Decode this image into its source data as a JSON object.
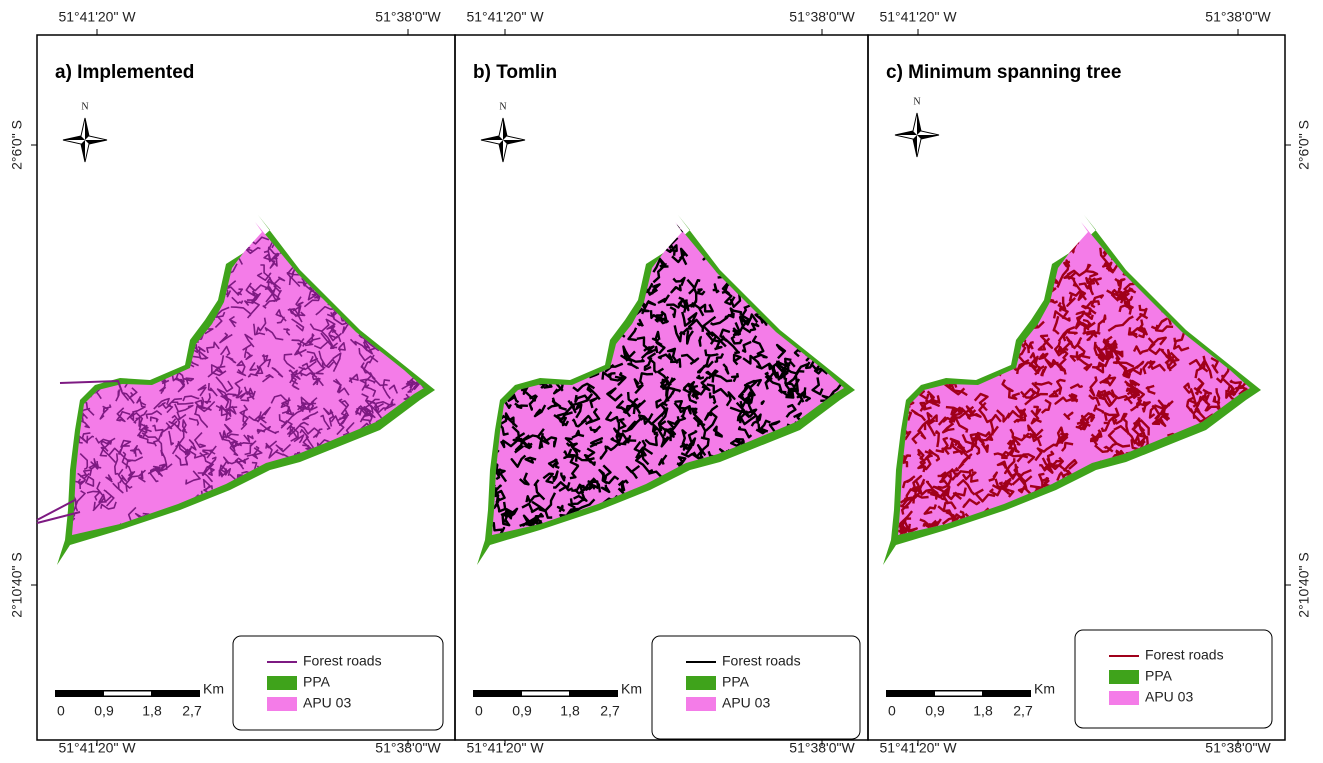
{
  "panels": [
    {
      "title": "a) Implemented",
      "north": "N",
      "legend": [
        {
          "label": "Forest roads",
          "color": "#7d1a82"
        },
        {
          "label": "PPA",
          "color": "#3fa31b"
        },
        {
          "label": "APU 03",
          "color": "#f47ce8"
        }
      ],
      "scale": {
        "labels": [
          "0",
          "0,9",
          "1,8",
          "2,7"
        ],
        "unit": "Km"
      },
      "top_coords": [
        "51°41'20\" W",
        "51°38'0\"W"
      ],
      "bottom_coords": [
        "51°41'20\" W",
        "51°38'0\"W"
      ]
    },
    {
      "title": "b) Tomlin",
      "north": "N",
      "legend": [
        {
          "label": "Forest roads",
          "color": "#000000"
        },
        {
          "label": "PPA",
          "color": "#3fa31b"
        },
        {
          "label": "APU 03",
          "color": "#f47ce8"
        }
      ],
      "scale": {
        "labels": [
          "0",
          "0,9",
          "1,8",
          "2,7"
        ],
        "unit": "Km"
      },
      "top_coords": [
        "51°41'20\" W",
        "51°38'0\"W"
      ],
      "bottom_coords": [
        "51°41'20\" W",
        "51°38'0\"W"
      ]
    },
    {
      "title": "c) Minimum spanning tree",
      "north": "N",
      "legend": [
        {
          "label": "Forest roads",
          "color": "#a0001a"
        },
        {
          "label": "PPA",
          "color": "#3fa31b"
        },
        {
          "label": "APU 03",
          "color": "#f47ce8"
        }
      ],
      "scale": {
        "labels": [
          "0",
          "0,9",
          "1,8",
          "2,7"
        ],
        "unit": "Km"
      },
      "top_coords": [
        "51°41'20\" W",
        "51°38'0\"W"
      ],
      "bottom_coords": [
        "51°41'20\" W",
        "51°38'0\"W"
      ]
    }
  ],
  "left_lat": [
    "2°6'0\" S",
    "2°10'40\" S"
  ],
  "right_lat": [
    "2°6'0\" S",
    "2°10'40\" S"
  ]
}
